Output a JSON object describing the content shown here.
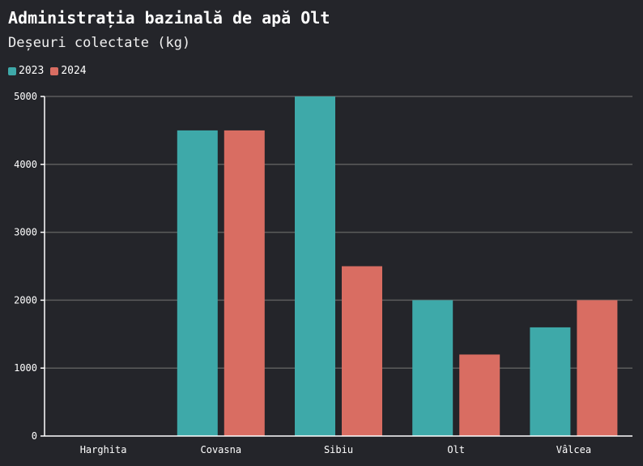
{
  "chart_data": {
    "type": "bar",
    "title": "Administrația bazinală de apă Olt",
    "subtitle": "Deșeuri colectate (kg)",
    "categories": [
      "Harghita",
      "Covasna",
      "Sibiu",
      "Olt",
      "Vâlcea"
    ],
    "series": [
      {
        "name": "2023",
        "color": "#3ea9a9",
        "values": [
          0,
          4500,
          5000,
          2000,
          1600
        ]
      },
      {
        "name": "2024",
        "color": "#d96d62",
        "values": [
          0,
          4500,
          2500,
          1200,
          2000
        ]
      }
    ],
    "ylim": [
      0,
      5000
    ],
    "yticks": [
      "0",
      "1000",
      "2000",
      "3000",
      "4000",
      "5000"
    ],
    "grid": true,
    "legend_position": "top-left",
    "colors": {
      "background": "#24252a",
      "grid": "#5c5c5c",
      "axis": "#ffffff",
      "text": "#ffffff"
    }
  }
}
